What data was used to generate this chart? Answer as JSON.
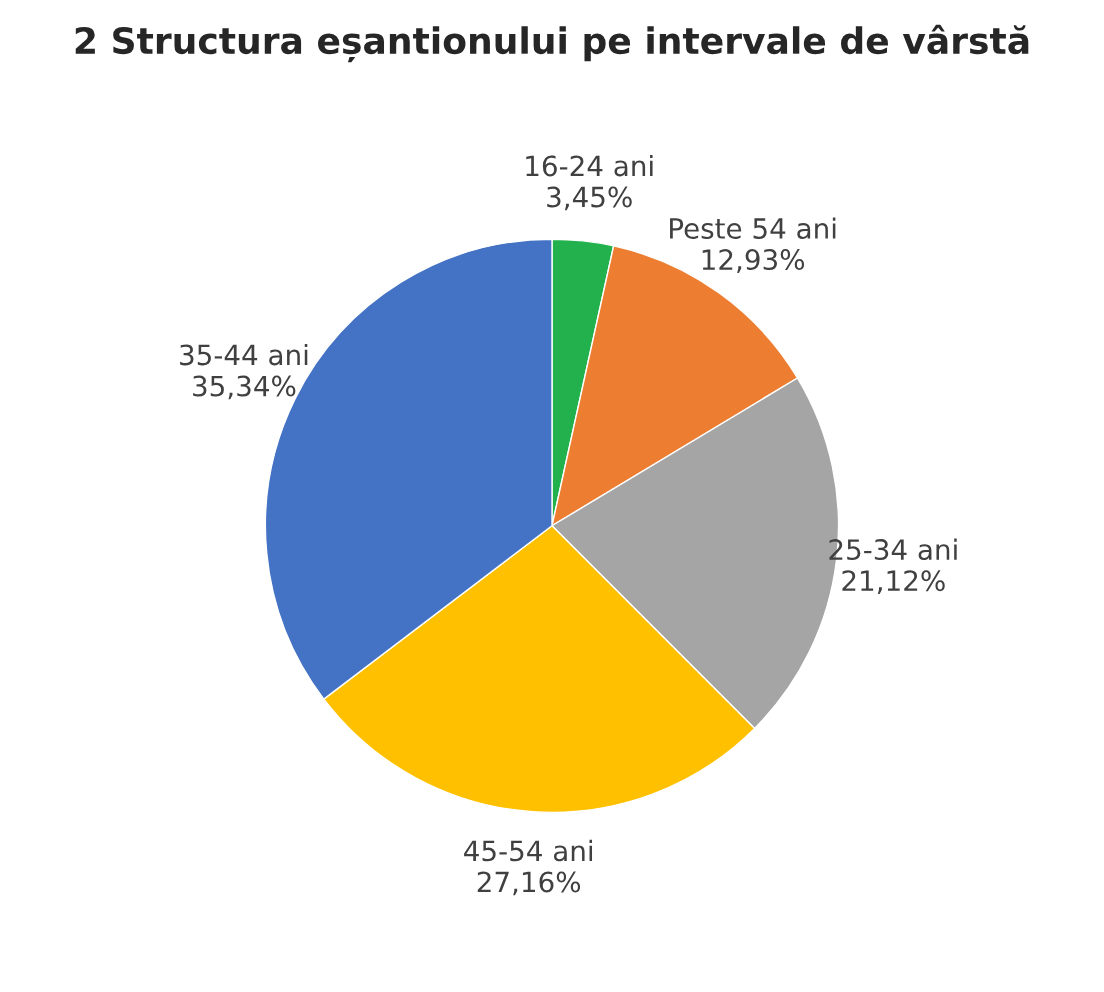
{
  "chart_data": {
    "type": "pie",
    "title": "2 Structura eșantionului pe intervale de vârstă",
    "categories": [
      "16-24 ani",
      "Peste 54 ani",
      "25-34 ani",
      "45-54 ani",
      "35-44 ani"
    ],
    "values": [
      3.45,
      12.93,
      21.12,
      27.16,
      35.34
    ],
    "value_labels": [
      "3,45%",
      "12,93%",
      "21,12%",
      "27,16%",
      "35,34%"
    ],
    "colors": [
      "#22b14c",
      "#ed7d31",
      "#a5a5a5",
      "#ffc000",
      "#4472c4"
    ]
  }
}
